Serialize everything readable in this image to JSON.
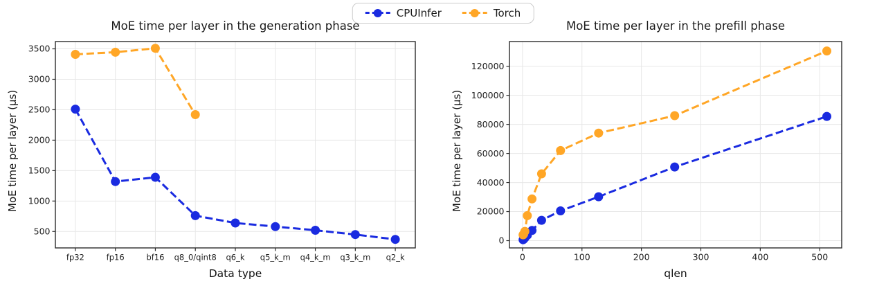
{
  "legend": {
    "items": [
      {
        "label": "CPUInfer",
        "color": "#1a2be0"
      },
      {
        "label": "Torch",
        "color": "#ffa626"
      }
    ]
  },
  "chart_data": [
    {
      "type": "line",
      "title": "MoE time per layer in the generation phase",
      "xlabel": "Data type",
      "ylabel": "MoE time per layer (µs)",
      "categories": [
        "fp32",
        "fp16",
        "bf16",
        "q8_0/qint8",
        "q6_k",
        "q5_k_m",
        "q4_k_m",
        "q3_k_m",
        "q2_k"
      ],
      "yticks": [
        500,
        1000,
        1500,
        2000,
        2500,
        3000,
        3500
      ],
      "ylim": [
        230,
        3620
      ],
      "grid": true,
      "legend_position": "figure-top-center",
      "series": [
        {
          "name": "CPUInfer",
          "color": "#1a2be0",
          "values": [
            2510,
            1320,
            1390,
            760,
            640,
            580,
            520,
            450,
            370
          ]
        },
        {
          "name": "Torch",
          "color": "#ffa626",
          "values": [
            3410,
            3445,
            3510,
            2420,
            null,
            null,
            null,
            null,
            null
          ]
        }
      ]
    },
    {
      "type": "line",
      "title": "MoE time per layer in the prefill phase",
      "xlabel": "qlen",
      "ylabel": "MoE time per layer (µs)",
      "x": [
        1,
        2,
        4,
        8,
        16,
        32,
        64,
        128,
        256,
        512
      ],
      "xticks": [
        0,
        100,
        200,
        300,
        400,
        500
      ],
      "xlim": [
        -22,
        537
      ],
      "yticks": [
        0,
        20000,
        40000,
        60000,
        80000,
        100000,
        120000
      ],
      "ylim": [
        -5000,
        137000
      ],
      "grid": true,
      "legend_position": "figure-top-center",
      "series": [
        {
          "name": "CPUInfer",
          "color": "#1a2be0",
          "values": [
            600,
            1000,
            1900,
            3700,
            7000,
            14000,
            20500,
            30200,
            50700,
            85500
          ]
        },
        {
          "name": "Torch",
          "color": "#ffa626",
          "values": [
            4000,
            4600,
            6400,
            17200,
            28700,
            46000,
            62000,
            74000,
            86000,
            130500
          ]
        }
      ]
    }
  ]
}
